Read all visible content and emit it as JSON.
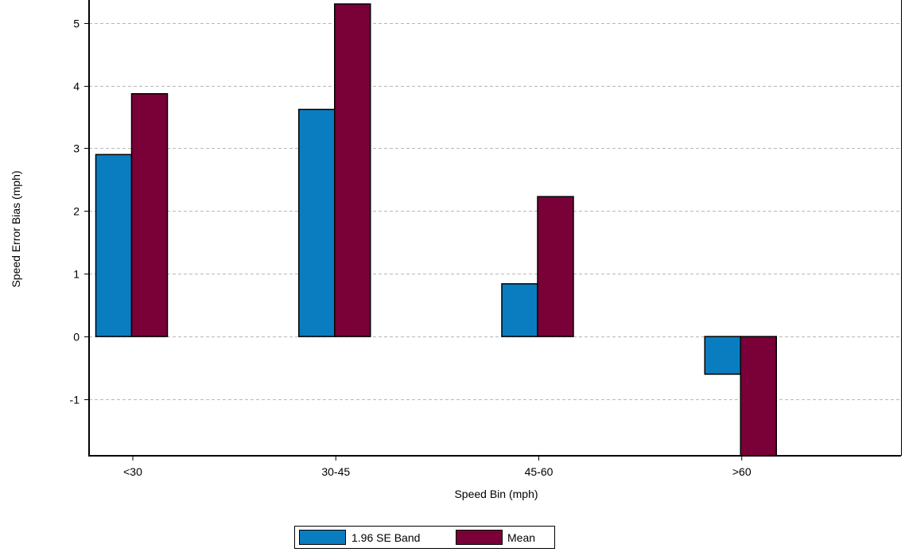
{
  "chart_data": {
    "type": "bar",
    "title": "",
    "xlabel": "Speed Bin (mph)",
    "ylabel": "Speed Error Bias (mph)",
    "categories": [
      "<30",
      "30-45",
      "45-60",
      ">60"
    ],
    "series": [
      {
        "name": "1.96 SE Band",
        "values": [
          2.9,
          3.62,
          0.84,
          -0.6
        ],
        "color": "#0a7dc0"
      },
      {
        "name": "Mean",
        "values": [
          3.87,
          5.3,
          2.23,
          -1.9
        ],
        "color": "#7a0038"
      }
    ],
    "ylim": [
      -1.9,
      5.3
    ],
    "yticks": [
      -1,
      0,
      1,
      2,
      3,
      4,
      5
    ],
    "grid": true,
    "legend_position": "bottom-center"
  }
}
